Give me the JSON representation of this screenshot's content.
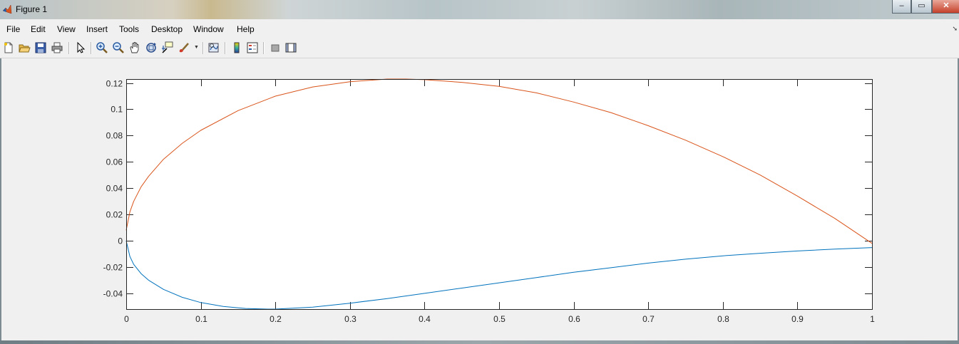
{
  "window": {
    "title": "Figure 1",
    "minimize_label": "–",
    "restore_label": "▭",
    "close_label": "✕"
  },
  "menu": {
    "items": [
      "File",
      "Edit",
      "View",
      "Insert",
      "Tools",
      "Desktop",
      "Window",
      "Help"
    ],
    "overflow_icon": "arrow-icon"
  },
  "toolbar": {
    "icons": [
      "new-figure-icon",
      "open-icon",
      "save-icon",
      "print-icon",
      "select-arrow-icon",
      "zoom-in-icon",
      "zoom-out-icon",
      "pan-icon",
      "rotate-3d-icon",
      "data-cursor-icon",
      "brush-icon",
      "link-plot-icon",
      "colorbar-icon",
      "legend-icon",
      "hide-plot-tools-icon",
      "show-plot-tools-icon"
    ]
  },
  "colors": {
    "series_lower": "#0072BD",
    "series_upper": "#D95319",
    "axes_bg": "#ffffff",
    "figure_bg": "#f0f0f0"
  },
  "chart_data": {
    "type": "line",
    "xlim": [
      0,
      1
    ],
    "ylim": [
      -0.052,
      0.123
    ],
    "x_ticks": [
      "0",
      "0.1",
      "0.2",
      "0.3",
      "0.4",
      "0.5",
      "0.6",
      "0.7",
      "0.8",
      "0.9",
      "1"
    ],
    "y_ticks": [
      "0.12",
      "0.1",
      "0.08",
      "0.06",
      "0.04",
      "0.02",
      "0",
      "-0.02",
      "-0.04"
    ],
    "y_tick_values": [
      0.12,
      0.1,
      0.08,
      0.06,
      0.04,
      0.02,
      0,
      -0.02,
      -0.04
    ],
    "grid": false,
    "series": [
      {
        "color": "#D95319",
        "x": [
          0,
          0.005,
          0.01,
          0.02,
          0.03,
          0.05,
          0.075,
          0.1,
          0.15,
          0.2,
          0.25,
          0.3,
          0.35,
          0.375,
          0.4,
          0.45,
          0.5,
          0.55,
          0.6,
          0.65,
          0.7,
          0.75,
          0.8,
          0.85,
          0.9,
          0.95,
          1.0
        ],
        "y": [
          0.008,
          0.022,
          0.03,
          0.041,
          0.049,
          0.062,
          0.074,
          0.084,
          0.099,
          0.11,
          0.117,
          0.121,
          0.123,
          0.123,
          0.1225,
          0.1205,
          0.1175,
          0.1125,
          0.1055,
          0.0975,
          0.0875,
          0.0765,
          0.064,
          0.05,
          0.034,
          0.017,
          -0.002
        ]
      },
      {
        "color": "#0072BD",
        "x": [
          0,
          0.005,
          0.01,
          0.02,
          0.03,
          0.05,
          0.075,
          0.1,
          0.13,
          0.16,
          0.19,
          0.2,
          0.25,
          0.3,
          0.35,
          0.4,
          0.45,
          0.5,
          0.55,
          0.6,
          0.65,
          0.7,
          0.75,
          0.8,
          0.85,
          0.9,
          0.95,
          1.0
        ],
        "y": [
          0,
          -0.012,
          -0.018,
          -0.025,
          -0.03,
          -0.037,
          -0.043,
          -0.047,
          -0.05,
          -0.0515,
          -0.052,
          -0.052,
          -0.0505,
          -0.0475,
          -0.044,
          -0.04,
          -0.036,
          -0.032,
          -0.028,
          -0.024,
          -0.0205,
          -0.017,
          -0.014,
          -0.0115,
          -0.0095,
          -0.0078,
          -0.0063,
          -0.0052
        ]
      }
    ]
  }
}
